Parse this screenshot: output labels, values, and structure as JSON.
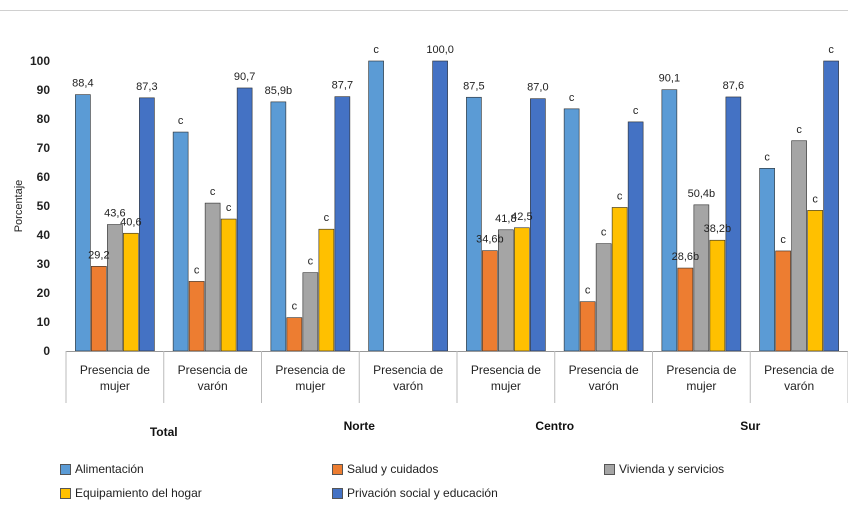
{
  "chart_data": {
    "type": "bar",
    "title": "",
    "ylabel": "Porcentaje",
    "ylim": [
      0,
      100
    ],
    "yticks": [
      0,
      10,
      20,
      30,
      40,
      50,
      60,
      70,
      80,
      90,
      100
    ],
    "categories": [
      "Presencia de mujer",
      "Presencia de varón",
      "Presencia de mujer",
      "Presencia de varón",
      "Presencia de mujer",
      "Presencia de varón",
      "Presencia de mujer",
      "Presencia de varón"
    ],
    "category_lines": [
      [
        "Presencia de",
        "mujer"
      ],
      [
        "Presencia de",
        "varón"
      ],
      [
        "Presencia de",
        "mujer"
      ],
      [
        "Presencia de",
        "varón"
      ],
      [
        "Presencia de",
        "mujer"
      ],
      [
        "Presencia de",
        "varón"
      ],
      [
        "Presencia de",
        "mujer"
      ],
      [
        "Presencia de",
        "varón"
      ]
    ],
    "groups": [
      {
        "label": "Total",
        "categories": [
          0,
          1
        ]
      },
      {
        "label": "Norte",
        "categories": [
          2,
          3
        ]
      },
      {
        "label": "Centro",
        "categories": [
          4,
          5
        ]
      },
      {
        "label": "Sur",
        "categories": [
          6,
          7
        ]
      }
    ],
    "series": [
      {
        "name": "Alimentación",
        "color": "#5B9BD5",
        "values": [
          88.4,
          75.5,
          85.9,
          100.0,
          87.5,
          83.5,
          90.1,
          63.0
        ],
        "labels": [
          "88,4",
          "c",
          "85,9b",
          "c",
          "87,5",
          "c",
          "90,1",
          "c"
        ]
      },
      {
        "name": "Salud y cuidados",
        "color": "#ED7D31",
        "values": [
          29.2,
          24.0,
          11.5,
          0,
          34.6,
          17.0,
          28.6,
          34.5
        ],
        "labels": [
          "29,2",
          "c",
          "c",
          "",
          "34,6b",
          "c",
          "28,6b",
          "c"
        ]
      },
      {
        "name": "Vivienda y servicios",
        "color": "#A5A5A5",
        "values": [
          43.6,
          51.0,
          27.0,
          0,
          41.8,
          37.0,
          50.4,
          72.5
        ],
        "labels": [
          "43,6",
          "c",
          "c",
          "",
          "41,8",
          "c",
          "50,4b",
          "c"
        ]
      },
      {
        "name": "Equipamiento del hogar",
        "color": "#FFC000",
        "values": [
          40.6,
          45.5,
          42.0,
          0,
          42.5,
          49.5,
          38.2,
          48.5
        ],
        "labels": [
          "40,6",
          "c",
          "c",
          "",
          "42,5",
          "c",
          "38,2b",
          "c"
        ]
      },
      {
        "name": "Privación social y educación",
        "color": "#4472C4",
        "values": [
          87.3,
          90.7,
          87.7,
          100.0,
          87.0,
          79.0,
          87.6,
          100.0
        ],
        "labels": [
          "87,3",
          "90,7",
          "87,7",
          "100,0",
          "87,0",
          "c",
          "87,6",
          "c"
        ]
      }
    ],
    "grid": false,
    "legend_position": "bottom"
  }
}
